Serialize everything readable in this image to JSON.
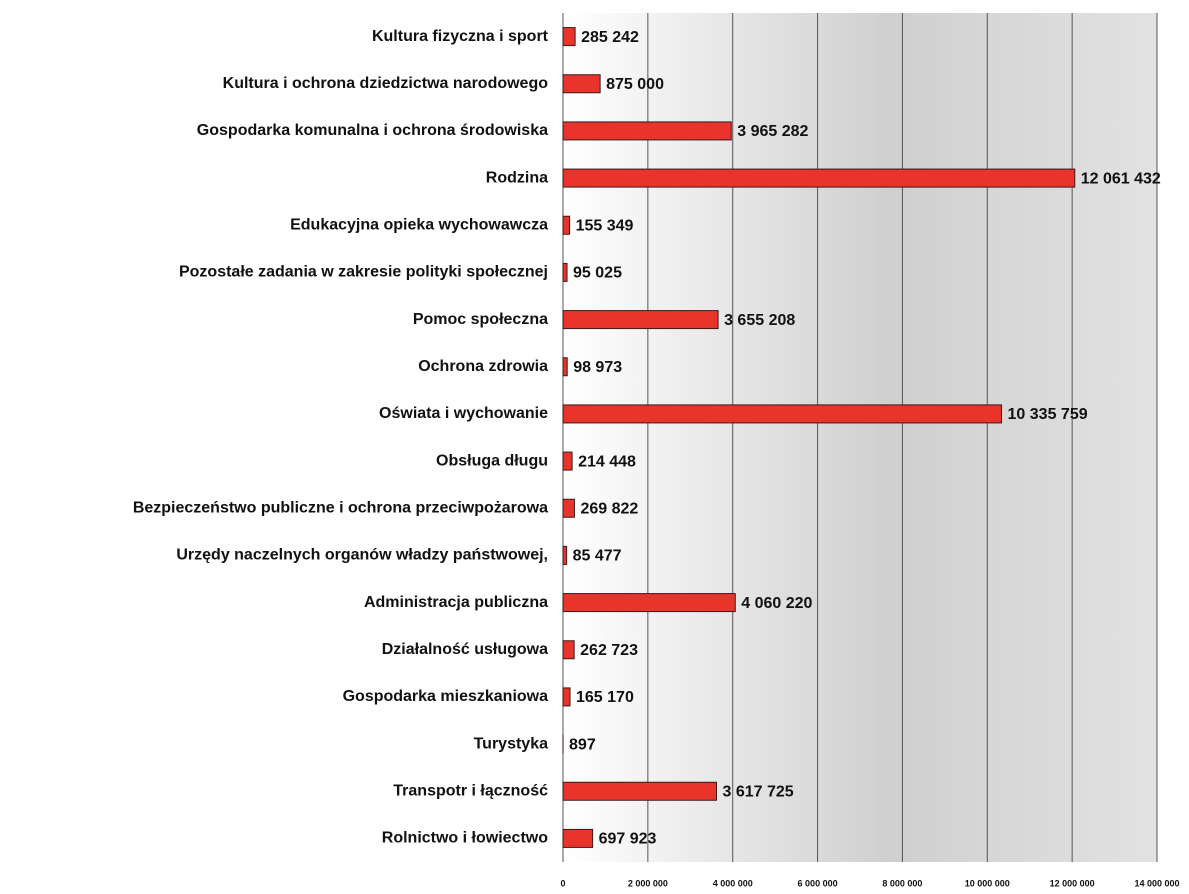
{
  "chart_data": {
    "type": "barh",
    "categories": [
      "Kultura fizyczna i sport",
      "Kultura i ochrona dziedzictwa narodowego",
      "Gospodarka komunalna i ochrona środowiska",
      "Rodzina",
      "Edukacyjna opieka wychowawcza",
      "Pozostałe zadania w zakresie polityki społecznej",
      "Pomoc społeczna",
      "Ochrona zdrowia",
      "Oświata i wychowanie",
      "Obsługa długu",
      "Bezpieczeństwo publiczne i ochrona przeciwpożarowa",
      "Urzędy naczelnych organów władzy państwowej,",
      "Administracja publiczna",
      "Działalność usługowa",
      "Gospodarka mieszkaniowa",
      "Turystyka",
      "Transpotr i łączność",
      "Rolnictwo i łowiectwo"
    ],
    "values": [
      285242,
      875000,
      3965282,
      12061432,
      155349,
      95025,
      3655208,
      98973,
      10335759,
      214448,
      269822,
      85477,
      4060220,
      262723,
      165170,
      897,
      3617725,
      697923
    ],
    "value_labels": [
      "285 242",
      "875 000",
      "3 965 282",
      "12 061 432",
      "155 349",
      "95 025",
      "3 655 208",
      "98 973",
      "10 335 759",
      "214 448",
      "269 822",
      "85 477",
      "4 060 220",
      "262 723",
      "165 170",
      "897",
      "3 617 725",
      "697 923"
    ],
    "color": "#e8342b",
    "xlim": [
      0,
      14000000
    ],
    "xticks": [
      0,
      {
        "value": 2000000,
        "label": "2 000 000"
      },
      {
        "value": 4000000,
        "label": "4 000 000"
      },
      {
        "value": 6000000,
        "label": "6 000 000"
      },
      {
        "value": 8000000,
        "label": "8 000 000"
      },
      {
        "value": 10000000,
        "label": "10 000 000"
      },
      {
        "value": 12000000,
        "label": "12 000 000"
      },
      {
        "value": 14000000,
        "label": "14 000 000"
      }
    ],
    "grid": true
  }
}
